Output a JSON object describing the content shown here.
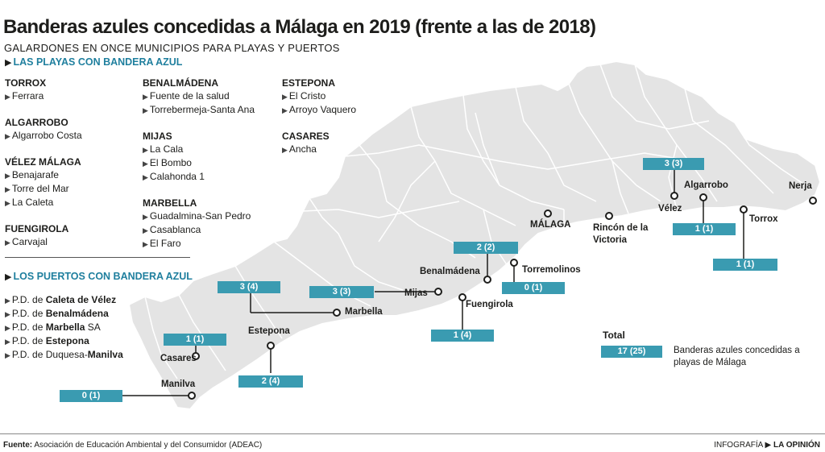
{
  "title": "Banderas azules concedidas a Málaga en 2019 (frente a las de 2018)",
  "subtitle": "GALARDONES EN ONCE MUNICIPIOS PARA PLAYAS Y PUERTOS",
  "beaches_header": "LAS PLAYAS CON BANDERA AZUL",
  "ports_header": "LOS PUERTOS CON BANDERA AZUL",
  "beaches": {
    "torrox": {
      "name": "TORROX",
      "items": [
        "Ferrara"
      ]
    },
    "algarrobo": {
      "name": "ALGARROBO",
      "items": [
        "Algarrobo Costa"
      ]
    },
    "velez": {
      "name": "VÉLEZ MÁLAGA",
      "items": [
        "Benajarafe",
        "Torre del Mar",
        "La Caleta"
      ]
    },
    "fuengirola": {
      "name": "FUENGIROLA",
      "items": [
        "Carvajal"
      ]
    },
    "benalmadena": {
      "name": "BENALMÁDENA",
      "items": [
        "Fuente de la salud",
        "Torrebermeja-Santa Ana"
      ]
    },
    "mijas": {
      "name": "MIJAS",
      "items": [
        "La Cala",
        "El Bombo",
        "Calahonda 1"
      ]
    },
    "marbella": {
      "name": "MARBELLA",
      "items": [
        "Guadalmina-San Pedro",
        "Casablanca",
        "El Faro"
      ]
    },
    "estepona": {
      "name": "ESTEPONA",
      "items": [
        "El Cristo",
        "Arroyo Vaquero"
      ]
    },
    "casares": {
      "name": "CASARES",
      "items": [
        "Ancha"
      ]
    }
  },
  "ports": [
    {
      "prefix": "P.D. de ",
      "bold": "Caleta de Vélez",
      "suffix": ""
    },
    {
      "prefix": "P.D. de ",
      "bold": "Benalmádena",
      "suffix": ""
    },
    {
      "prefix": "P.D. de ",
      "bold": "Marbella",
      "suffix": " SA"
    },
    {
      "prefix": "P.D. de ",
      "bold": "Estepona",
      "suffix": ""
    },
    {
      "prefix": "P.D. de Duquesa-",
      "bold": "Manilva",
      "suffix": ""
    }
  ],
  "map": {
    "places": {
      "nerja": "Nerja",
      "torrox": "Torrox",
      "algarrobo": "Algarrobo",
      "velez": "Vélez",
      "rincon": "Rincón de la Victoria",
      "malaga": "MÁLAGA",
      "torremolinos": "Torremolinos",
      "benalmadena": "Benalmádena",
      "fuengirola": "Fuengirola",
      "mijas": "Mijas",
      "marbella": "Marbella",
      "estepona": "Estepona",
      "casares": "Casares",
      "manilva": "Manilva"
    },
    "badges": {
      "velez": "3 (3)",
      "algarrobo": "1 (1)",
      "torrox": "1 (1)",
      "benalmadena": "2 (2)",
      "torremolinos": "0 (1)",
      "fuengirola": "1 (4)",
      "mijas": "3 (3)",
      "marbella": "3 (4)",
      "casares": "1 (1)",
      "estepona": "2 (4)",
      "manilva": "0 (1)"
    },
    "land_color": "#e4e4e4",
    "border_color": "#ffffff",
    "badge_color": "#3a9bb1"
  },
  "total": {
    "label": "Total",
    "value": "17 (25)",
    "description": "Banderas azules concedidas a playas de Málaga"
  },
  "footer": {
    "source_label": "Fuente:",
    "source_text": "Asociación de Educación Ambiental y del Consumidor (ADEAC)",
    "credit_prefix": "INFOGRAFÍA",
    "credit_brand": "LA OPINIÓN"
  }
}
